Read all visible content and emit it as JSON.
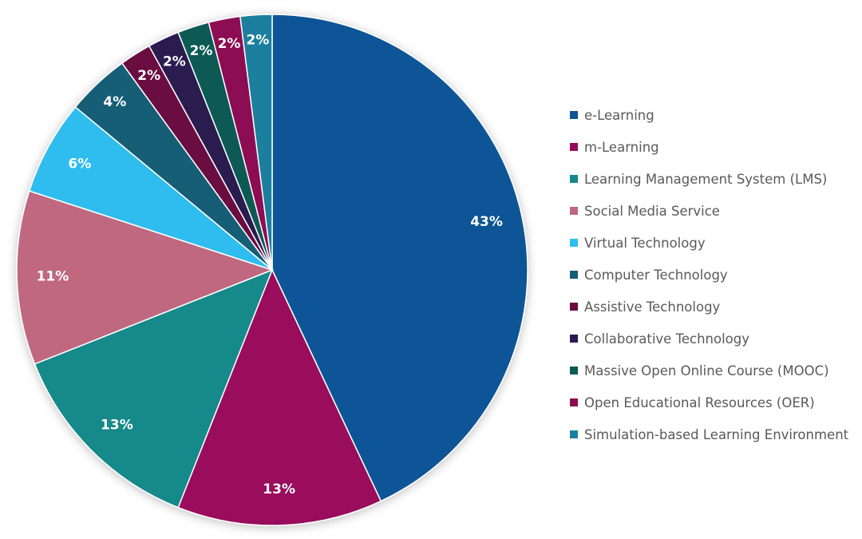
{
  "chart_data": {
    "type": "pie",
    "start_angle": "top, clockwise",
    "legend_position": "right",
    "categories": [
      "e-Learning",
      "m-Learning",
      "Learning Management System (LMS)",
      "Social Media Service",
      "Virtual Technology",
      "Computer Technology",
      "Assistive Technology",
      "Collaborative Technology",
      "Massive Open Online Course (MOOC)",
      "Open Educational Resources (OER)",
      "Simulation-based Learning Environment"
    ],
    "values": [
      43,
      13,
      13,
      11,
      6,
      4,
      2,
      2,
      2,
      2,
      2
    ],
    "data_labels": [
      "43%",
      "13%",
      "13%",
      "11%",
      "6%",
      "4%",
      "2%",
      "2%",
      "2%",
      "2%",
      "2%"
    ],
    "colors": [
      "#0d5596",
      "#990a5c",
      "#16898a",
      "#bf6780",
      "#2ebdee",
      "#135d76",
      "#6b0a40",
      "#2b1a50",
      "#0d5a55",
      "#8c0b52",
      "#1a7f9e"
    ]
  }
}
